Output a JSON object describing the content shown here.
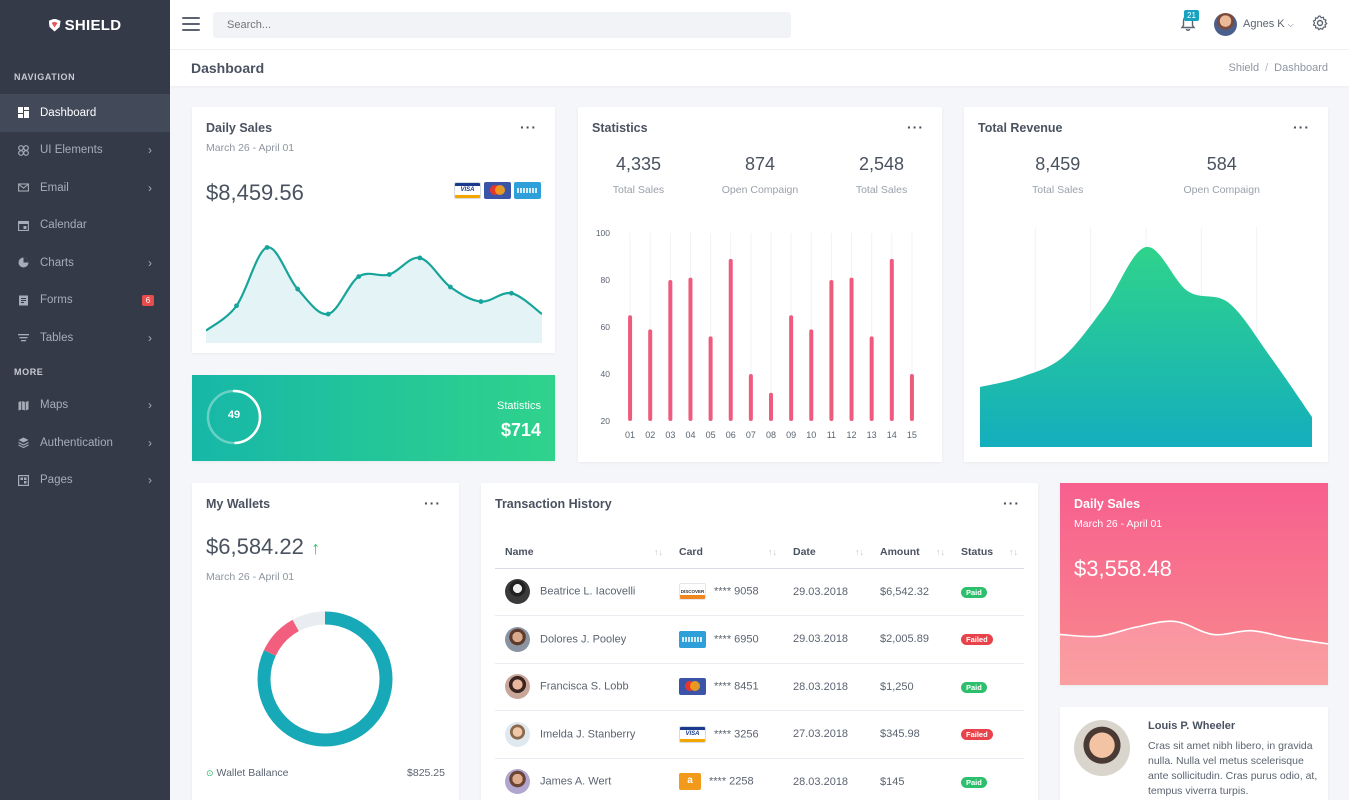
{
  "brand": {
    "name": "SHIELD"
  },
  "sidebar": {
    "nav_heading": "NAVIGATION",
    "more_heading": "MORE",
    "items": [
      {
        "label": "Dashboard",
        "icon": "dashboard-icon"
      },
      {
        "label": "UI Elements",
        "icon": "ui-elements-icon"
      },
      {
        "label": "Email",
        "icon": "email-icon"
      },
      {
        "label": "Calendar",
        "icon": "calendar-icon"
      },
      {
        "label": "Charts",
        "icon": "charts-icon"
      },
      {
        "label": "Forms",
        "icon": "forms-icon",
        "badge": "6"
      },
      {
        "label": "Tables",
        "icon": "tables-icon"
      }
    ],
    "more_items": [
      {
        "label": "Maps",
        "icon": "maps-icon"
      },
      {
        "label": "Authentication",
        "icon": "authentication-icon"
      },
      {
        "label": "Pages",
        "icon": "pages-icon"
      }
    ]
  },
  "topbar": {
    "search_placeholder": "Search...",
    "notifications": "21",
    "user_name": "Agnes K"
  },
  "page": {
    "title": "Dashboard",
    "breadcrumb": [
      "Shield",
      "Dashboard"
    ]
  },
  "daily_sales": {
    "title": "Daily Sales",
    "range": "March 26 - April 01",
    "amount": "$8,459.56",
    "chart_data": {
      "type": "area",
      "values": [
        4,
        16,
        44,
        24,
        12,
        30,
        31,
        39,
        25,
        18,
        22,
        12
      ]
    }
  },
  "stats_card": {
    "progress": "49",
    "progress_fraction": 0.49,
    "label": "Statistics",
    "amount": "$714"
  },
  "statistics": {
    "title": "Statistics",
    "metrics": [
      {
        "value": "4,335",
        "label": "Total Sales"
      },
      {
        "value": "874",
        "label": "Open Compaign"
      },
      {
        "value": "2,548",
        "label": "Total Sales"
      }
    ],
    "chart_data": {
      "type": "bar",
      "categories": [
        "01",
        "02",
        "03",
        "04",
        "05",
        "06",
        "07",
        "08",
        "09",
        "10",
        "11",
        "12",
        "13",
        "14",
        "15"
      ],
      "values": [
        65,
        59,
        80,
        81,
        56,
        89,
        40,
        32,
        65,
        59,
        80,
        81,
        56,
        89,
        40
      ],
      "y_ticks": [
        "100",
        "80",
        "60",
        "40",
        "20"
      ],
      "ylim": [
        20,
        100
      ],
      "color": "#ef5b7c"
    }
  },
  "total_revenue": {
    "title": "Total Revenue",
    "metrics": [
      {
        "value": "8,459",
        "label": "Total Sales"
      },
      {
        "value": "584",
        "label": "Open Compaign"
      }
    ],
    "chart_data": {
      "type": "area",
      "values": [
        30,
        35,
        45,
        70,
        100,
        78,
        72,
        45,
        15
      ]
    }
  },
  "wallets": {
    "title": "My Wallets",
    "amount": "$6,584.22",
    "range": "March 26 - April 01",
    "chart_data": {
      "type": "pie",
      "values": [
        82,
        10,
        8
      ],
      "colors": [
        "#17a9b8",
        "#f25f7e",
        "#e9ecf0"
      ]
    },
    "rows": [
      {
        "label": "Wallet Ballance",
        "value": "$825.25"
      }
    ]
  },
  "transactions": {
    "title": "Transaction History",
    "columns": [
      "Name",
      "Card",
      "Date",
      "Amount",
      "Status"
    ],
    "rows": [
      {
        "name": "Beatrice L. Iacovelli",
        "card": "discover",
        "card_label": "DISCOVER",
        "number": "**** 9058",
        "date": "29.03.2018",
        "amount": "$6,542.32",
        "status": "Paid"
      },
      {
        "name": "Dolores J. Pooley",
        "card": "amex",
        "card_label": "",
        "number": "**** 6950",
        "date": "29.03.2018",
        "amount": "$2,005.89",
        "status": "Failed"
      },
      {
        "name": "Francisca S. Lobb",
        "card": "mc",
        "card_label": "",
        "number": "**** 8451",
        "date": "28.03.2018",
        "amount": "$1,250",
        "status": "Paid"
      },
      {
        "name": "Imelda J. Stanberry",
        "card": "visa",
        "card_label": "VISA",
        "number": "**** 3256",
        "date": "27.03.2018",
        "amount": "$345.98",
        "status": "Failed"
      },
      {
        "name": "James A. Wert",
        "card": "amazon",
        "card_label": "a",
        "number": "**** 2258",
        "date": "28.03.2018",
        "amount": "$145",
        "status": "Paid"
      }
    ]
  },
  "pink_sales": {
    "title": "Daily Sales",
    "range": "March 26 - April 01",
    "amount": "$3,558.48",
    "chart_data": {
      "type": "area",
      "values": [
        22,
        20,
        30,
        36,
        22,
        26,
        18,
        12
      ]
    }
  },
  "profile": {
    "name": "Louis P. Wheeler",
    "bio": "Cras sit amet nibh libero, in gravida nulla. Nulla vel metus scelerisque ante sollicitudin. Cras purus odio, at, tempus viverra turpis."
  }
}
